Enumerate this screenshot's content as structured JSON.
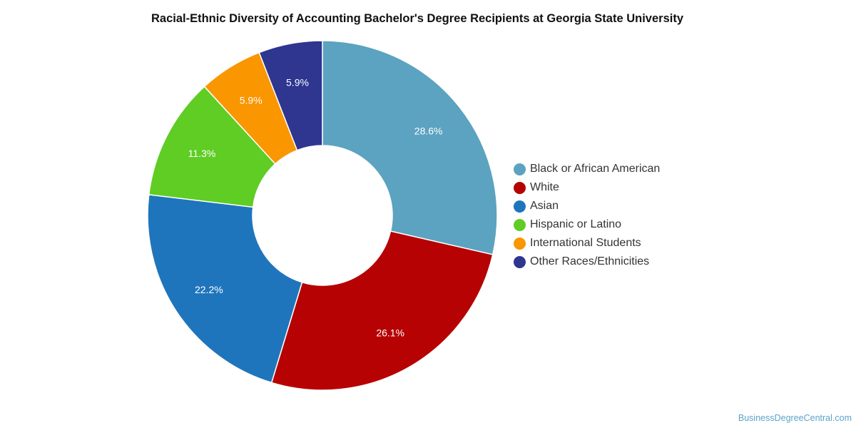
{
  "title": "Racial-Ethnic Diversity of Accounting Bachelor's Degree Recipients at Georgia State University",
  "credit": "BusinessDegreeCentral.com",
  "chart_data": {
    "type": "pie",
    "style": "donut",
    "title": "Racial-Ethnic Diversity of Accounting Bachelor's Degree Recipients at Georgia State University",
    "legend_position": "right",
    "slices": [
      {
        "label": "Black or African American",
        "value": 28.6,
        "display": "28.6%",
        "color": "#5ba3c0"
      },
      {
        "label": "White",
        "value": 26.1,
        "display": "26.1%",
        "color": "#b60203"
      },
      {
        "label": "Asian",
        "value": 22.2,
        "display": "22.2%",
        "color": "#1f75bc"
      },
      {
        "label": "Hispanic or Latino",
        "value": 11.3,
        "display": "11.3%",
        "color": "#5fcd24"
      },
      {
        "label": "International Students",
        "value": 5.9,
        "display": "5.9%",
        "color": "#f99600"
      },
      {
        "label": "Other Races/Ethnicities",
        "value": 5.9,
        "display": "5.9%",
        "color": "#2e3690"
      }
    ]
  }
}
